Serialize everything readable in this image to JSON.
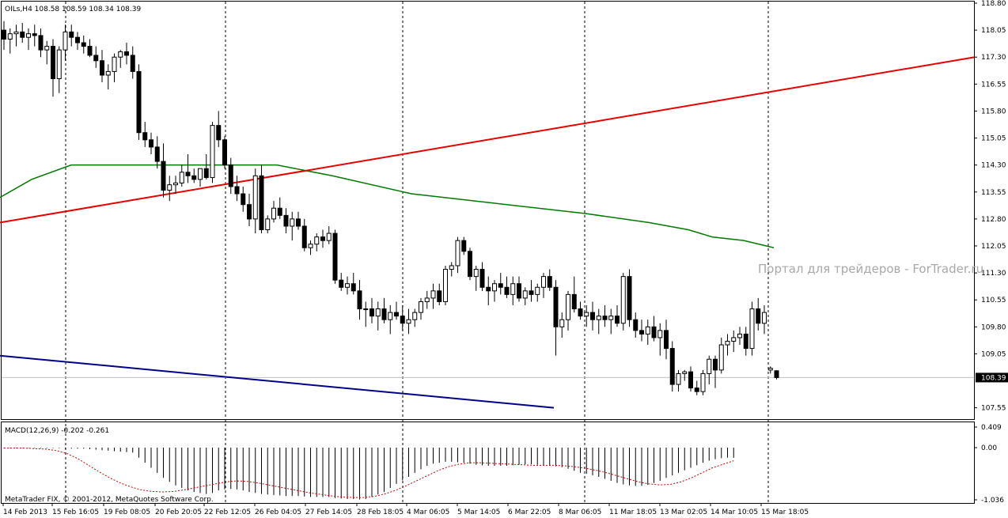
{
  "window": {
    "symbol_info": "OILs,H4  108.58 108.59 108.34 108.39",
    "watermark": "Портал для трейдеров - ForTrader.ru",
    "copyright": "MetaTrader FIX, © 2001-2012, MetaQuotes Software Corp.",
    "macd_label": "MACD(12,26,9) -0.202 -0.261",
    "current_price_label": "108.39"
  },
  "colors": {
    "background": "#ffffff",
    "frame": "#000000",
    "bull_body": "#ffffff",
    "bear_body": "#000000",
    "trend_red": "#e60000",
    "ma_green": "#007a00",
    "trend_blue": "#00008b",
    "macd_signal": "#cc0000",
    "grid_vline": "#000000",
    "bid_line": "#c0c0c0"
  },
  "chart_data": [
    {
      "type": "candlestick",
      "title": "OILs,H4",
      "ylim": [
        107.3,
        118.8
      ],
      "price_ticks": [
        "118.80",
        "118.05",
        "117.30",
        "116.55",
        "115.80",
        "115.05",
        "114.30",
        "113.55",
        "112.80",
        "112.05",
        "111.30",
        "110.55",
        "109.80",
        "109.05",
        "107.55"
      ],
      "date_ticks": [
        "14 Feb 2013",
        "15 Feb 16:05",
        "19 Feb 08:05",
        "20 Feb 20:05",
        "22 Feb 12:05",
        "26 Feb 04:05",
        "27 Feb 14:05",
        "28 Feb 18:05",
        "4 Mar 06:05",
        "5 Mar 14:05",
        "6 Mar 22:05",
        "8 Mar 06:05",
        "11 Mar 18:05",
        "13 Mar 02:05",
        "14 Mar 10:05",
        "15 Mar 18:05"
      ],
      "separator_dates": [
        "15 Feb",
        "22 Feb",
        "4 Mar",
        "8 Mar",
        "15 Mar"
      ],
      "candles": [
        [
          118.05,
          118.3,
          117.5,
          117.8
        ],
        [
          117.8,
          118.1,
          117.4,
          117.95
        ],
        [
          117.95,
          118.2,
          117.6,
          118.0
        ],
        [
          118.0,
          118.25,
          117.7,
          117.85
        ],
        [
          117.85,
          118.1,
          117.5,
          117.95
        ],
        [
          117.95,
          118.2,
          117.6,
          117.9
        ],
        [
          117.9,
          118.1,
          117.3,
          117.5
        ],
        [
          117.5,
          117.75,
          117.1,
          117.6
        ],
        [
          117.6,
          117.8,
          116.2,
          116.7
        ],
        [
          116.7,
          117.6,
          116.3,
          117.5
        ],
        [
          117.5,
          118.2,
          117.2,
          118.0
        ],
        [
          118.0,
          118.2,
          117.6,
          117.85
        ],
        [
          117.85,
          118.0,
          117.5,
          117.7
        ],
        [
          117.7,
          117.9,
          117.4,
          117.6
        ],
        [
          117.6,
          117.8,
          117.3,
          117.35
        ],
        [
          117.35,
          117.6,
          117.0,
          117.2
        ],
        [
          117.2,
          117.5,
          116.6,
          116.8
        ],
        [
          116.8,
          117.1,
          116.4,
          116.9
        ],
        [
          116.9,
          117.4,
          116.6,
          117.3
        ],
        [
          117.3,
          117.5,
          117.0,
          117.45
        ],
        [
          117.45,
          117.7,
          117.1,
          117.35
        ],
        [
          117.35,
          117.6,
          116.7,
          116.9
        ],
        [
          116.9,
          117.1,
          115.0,
          115.2
        ],
        [
          115.2,
          115.5,
          114.8,
          115.0
        ],
        [
          115.0,
          115.2,
          114.6,
          114.8
        ],
        [
          114.8,
          115.1,
          114.2,
          114.4
        ],
        [
          114.4,
          114.9,
          113.4,
          113.6
        ],
        [
          113.6,
          114.0,
          113.3,
          113.75
        ],
        [
          113.75,
          114.0,
          113.5,
          113.8
        ],
        [
          113.8,
          114.3,
          113.7,
          114.1
        ],
        [
          114.1,
          114.6,
          113.8,
          114.0
        ],
        [
          114.0,
          114.2,
          113.8,
          113.9
        ],
        [
          113.9,
          114.2,
          113.7,
          114.2
        ],
        [
          114.2,
          114.6,
          113.9,
          113.95
        ],
        [
          113.95,
          115.5,
          113.8,
          115.4
        ],
        [
          115.4,
          115.8,
          114.8,
          115.0
        ],
        [
          115.0,
          115.1,
          114.2,
          114.3
        ],
        [
          114.3,
          114.5,
          113.5,
          113.7
        ],
        [
          113.7,
          114.0,
          113.3,
          113.5
        ],
        [
          113.5,
          113.7,
          113.0,
          113.2
        ],
        [
          113.2,
          113.5,
          112.6,
          112.8
        ],
        [
          112.8,
          114.2,
          112.4,
          114.0
        ],
        [
          114.0,
          114.3,
          112.4,
          112.5
        ],
        [
          112.5,
          112.9,
          112.4,
          112.8
        ],
        [
          112.8,
          113.3,
          112.7,
          113.1
        ],
        [
          113.1,
          113.4,
          112.8,
          112.9
        ],
        [
          112.9,
          113.1,
          112.4,
          112.6
        ],
        [
          112.6,
          113.0,
          112.2,
          112.8
        ],
        [
          112.8,
          113.0,
          112.5,
          112.6
        ],
        [
          112.6,
          112.8,
          111.9,
          112.0
        ],
        [
          112.0,
          112.2,
          111.8,
          112.1
        ],
        [
          112.1,
          112.4,
          111.9,
          112.3
        ],
        [
          112.3,
          112.5,
          112.0,
          112.2
        ],
        [
          112.2,
          112.6,
          112.1,
          112.4
        ],
        [
          112.4,
          112.5,
          111.0,
          111.1
        ],
        [
          111.1,
          111.3,
          110.8,
          110.9
        ],
        [
          110.9,
          111.2,
          110.7,
          111.0
        ],
        [
          111.0,
          111.3,
          110.7,
          110.8
        ],
        [
          110.8,
          111.1,
          110.0,
          110.3
        ],
        [
          110.3,
          110.5,
          109.8,
          110.3
        ],
        [
          110.3,
          110.6,
          109.9,
          110.1
        ],
        [
          110.1,
          110.5,
          109.7,
          110.3
        ],
        [
          110.3,
          110.6,
          109.9,
          110.0
        ],
        [
          110.0,
          110.4,
          109.6,
          110.2
        ],
        [
          110.2,
          110.5,
          110.0,
          110.1
        ],
        [
          110.1,
          110.4,
          109.7,
          109.9
        ],
        [
          109.9,
          110.3,
          109.6,
          110.0
        ],
        [
          110.0,
          110.3,
          109.8,
          110.2
        ],
        [
          110.2,
          110.6,
          110.0,
          110.5
        ],
        [
          110.5,
          110.8,
          110.3,
          110.6
        ],
        [
          110.6,
          111.0,
          110.3,
          110.8
        ],
        [
          110.8,
          111.0,
          110.4,
          110.5
        ],
        [
          110.5,
          111.5,
          110.4,
          111.4
        ],
        [
          111.4,
          111.6,
          111.2,
          111.5
        ],
        [
          111.5,
          112.3,
          111.3,
          112.2
        ],
        [
          112.2,
          112.3,
          111.8,
          111.9
        ],
        [
          111.9,
          112.0,
          111.1,
          111.2
        ],
        [
          111.2,
          111.5,
          110.8,
          111.4
        ],
        [
          111.4,
          111.6,
          110.8,
          110.9
        ],
        [
          110.9,
          111.2,
          110.4,
          110.8
        ],
        [
          110.8,
          111.1,
          110.5,
          111.0
        ],
        [
          111.0,
          111.3,
          110.7,
          110.9
        ],
        [
          110.9,
          111.2,
          110.6,
          110.7
        ],
        [
          110.7,
          111.2,
          110.4,
          111.0
        ],
        [
          111.0,
          111.2,
          110.5,
          110.6
        ],
        [
          110.6,
          110.9,
          110.4,
          110.8
        ],
        [
          110.8,
          111.1,
          110.5,
          110.7
        ],
        [
          110.7,
          111.0,
          110.5,
          110.9
        ],
        [
          110.9,
          111.3,
          110.6,
          111.2
        ],
        [
          111.2,
          111.4,
          110.8,
          110.9
        ],
        [
          110.9,
          111.1,
          109.0,
          109.8
        ],
        [
          109.8,
          110.2,
          109.5,
          110.0
        ],
        [
          110.0,
          110.8,
          109.7,
          110.7
        ],
        [
          110.7,
          111.2,
          110.2,
          110.3
        ],
        [
          110.3,
          110.5,
          110.0,
          110.1
        ],
        [
          110.1,
          110.4,
          109.8,
          110.2
        ],
        [
          110.2,
          110.5,
          109.7,
          110.0
        ],
        [
          110.0,
          110.3,
          109.6,
          110.1
        ],
        [
          110.1,
          110.4,
          109.8,
          110.0
        ],
        [
          110.0,
          110.3,
          109.6,
          110.1
        ],
        [
          110.1,
          110.4,
          109.8,
          109.9
        ],
        [
          109.9,
          111.3,
          109.7,
          111.2
        ],
        [
          111.2,
          111.4,
          109.8,
          110.0
        ],
        [
          110.0,
          110.2,
          109.5,
          109.7
        ],
        [
          109.7,
          110.0,
          109.4,
          109.6
        ],
        [
          109.6,
          110.0,
          109.3,
          109.8
        ],
        [
          109.8,
          110.1,
          109.4,
          109.5
        ],
        [
          109.5,
          109.9,
          109.0,
          109.7
        ],
        [
          109.7,
          110.0,
          108.9,
          109.2
        ],
        [
          109.2,
          109.4,
          108.0,
          108.2
        ],
        [
          108.2,
          108.6,
          108.0,
          108.5
        ],
        [
          108.5,
          108.6,
          108.3,
          108.55
        ],
        [
          108.55,
          108.7,
          108.0,
          108.1
        ],
        [
          108.1,
          108.3,
          107.9,
          108.0
        ],
        [
          108.0,
          108.6,
          107.9,
          108.5
        ],
        [
          108.5,
          109.0,
          108.2,
          108.9
        ],
        [
          108.9,
          109.0,
          108.1,
          108.6
        ],
        [
          108.6,
          109.5,
          108.5,
          109.3
        ],
        [
          109.3,
          109.6,
          109.0,
          109.4
        ],
        [
          109.4,
          109.7,
          109.1,
          109.5
        ],
        [
          109.5,
          109.8,
          109.3,
          109.6
        ],
        [
          109.6,
          109.8,
          109.0,
          109.2
        ],
        [
          109.2,
          110.5,
          109.0,
          110.3
        ],
        [
          110.3,
          110.6,
          109.7,
          109.9
        ],
        [
          109.9,
          110.4,
          109.6,
          110.2
        ],
        [
          108.6,
          108.7,
          108.5,
          108.65
        ],
        [
          108.58,
          108.59,
          108.34,
          108.39
        ]
      ],
      "ma_green": [
        [
          0,
          113.4
        ],
        [
          40,
          113.9
        ],
        [
          90,
          114.3
        ],
        [
          180,
          114.3
        ],
        [
          350,
          114.3
        ],
        [
          420,
          114.0
        ],
        [
          520,
          113.5
        ],
        [
          620,
          113.25
        ],
        [
          740,
          112.95
        ],
        [
          820,
          112.7
        ],
        [
          870,
          112.5
        ],
        [
          900,
          112.3
        ],
        [
          940,
          112.2
        ],
        [
          978,
          112.0
        ]
      ],
      "trend_red": [
        [
          0,
          112.7
        ],
        [
          1232,
          117.3
        ]
      ],
      "trend_blue": [
        [
          0,
          109.0
        ],
        [
          700,
          107.55
        ]
      ]
    },
    {
      "type": "bar",
      "title": "MACD(12,26,9) -0.202 -0.261",
      "ylim": [
        -1.036,
        0.409
      ],
      "ticks": [
        "0.409",
        "0.00",
        "-1.036"
      ],
      "histogram": [
        -0.01,
        -0.01,
        -0.01,
        -0.01,
        -0.01,
        -0.01,
        -0.01,
        -0.01,
        -0.01,
        -0.01,
        -0.02,
        -0.02,
        -0.02,
        -0.02,
        -0.03,
        -0.04,
        -0.05,
        -0.06,
        -0.07,
        -0.08,
        -0.09,
        -0.1,
        -0.2,
        -0.3,
        -0.4,
        -0.5,
        -0.6,
        -0.68,
        -0.75,
        -0.8,
        -0.85,
        -0.88,
        -0.9,
        -0.92,
        -0.9,
        -0.85,
        -0.83,
        -0.82,
        -0.83,
        -0.85,
        -0.88,
        -0.9,
        -0.92,
        -0.93,
        -0.94,
        -0.95,
        -0.96,
        -0.96,
        -0.96,
        -0.97,
        -0.98,
        -0.98,
        -0.98,
        -0.98,
        -1.0,
        -1.01,
        -1.02,
        -1.02,
        -1.03,
        -1.02,
        -0.98,
        -0.93,
        -0.88,
        -0.8,
        -0.72,
        -0.65,
        -0.58,
        -0.5,
        -0.43,
        -0.36,
        -0.32,
        -0.3,
        -0.28,
        -0.28,
        -0.29,
        -0.3,
        -0.32,
        -0.34,
        -0.35,
        -0.36,
        -0.36,
        -0.36,
        -0.36,
        -0.35,
        -0.34,
        -0.33,
        -0.33,
        -0.34,
        -0.35,
        -0.36,
        -0.37,
        -0.39,
        -0.42,
        -0.46,
        -0.5,
        -0.52,
        -0.55,
        -0.58,
        -0.62,
        -0.66,
        -0.7,
        -0.73,
        -0.75,
        -0.76,
        -0.76,
        -0.74,
        -0.7,
        -0.66,
        -0.6,
        -0.55,
        -0.5,
        -0.45,
        -0.4,
        -0.35,
        -0.3,
        -0.26,
        -0.23,
        -0.21,
        -0.2,
        -0.202
      ],
      "signal": [
        -0.01,
        -0.01,
        -0.01,
        -0.02,
        -0.03,
        -0.06,
        -0.12,
        -0.22,
        -0.35,
        -0.48,
        -0.6,
        -0.7,
        -0.78,
        -0.84,
        -0.87,
        -0.88,
        -0.87,
        -0.84,
        -0.8,
        -0.76,
        -0.72,
        -0.68,
        -0.66,
        -0.67,
        -0.7,
        -0.74,
        -0.78,
        -0.82,
        -0.86,
        -0.9,
        -0.93,
        -0.96,
        -0.98,
        -0.99,
        -0.99,
        -0.97,
        -0.92,
        -0.85,
        -0.76,
        -0.66,
        -0.56,
        -0.46,
        -0.38,
        -0.33,
        -0.3,
        -0.3,
        -0.31,
        -0.32,
        -0.33,
        -0.34,
        -0.35,
        -0.35,
        -0.35,
        -0.36,
        -0.38,
        -0.41,
        -0.45,
        -0.5,
        -0.56,
        -0.62,
        -0.68,
        -0.72,
        -0.74,
        -0.73,
        -0.68,
        -0.6,
        -0.5,
        -0.4,
        -0.33,
        -0.261
      ]
    }
  ]
}
